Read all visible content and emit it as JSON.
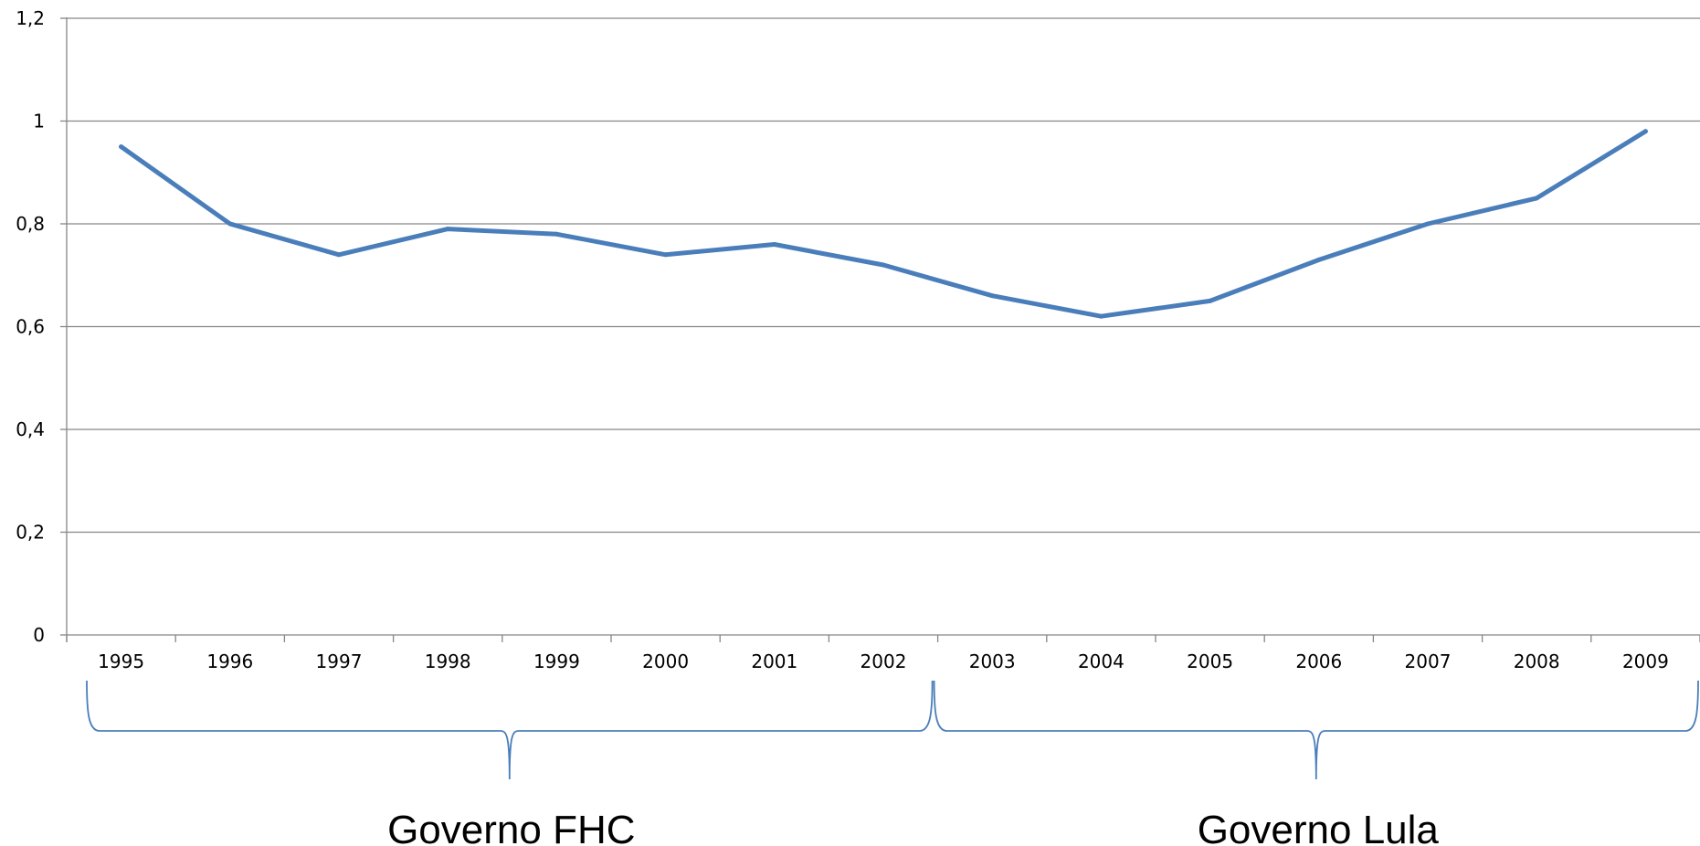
{
  "chart_data": {
    "type": "line",
    "title": "",
    "xlabel": "",
    "ylabel": "",
    "categories": [
      "1995",
      "1996",
      "1997",
      "1998",
      "1999",
      "2000",
      "2001",
      "2002",
      "2003",
      "2004",
      "2005",
      "2006",
      "2007",
      "2008",
      "2009"
    ],
    "series": [
      {
        "values": [
          0.95,
          0.8,
          0.74,
          0.79,
          0.78,
          0.74,
          0.76,
          0.72,
          0.66,
          0.62,
          0.65,
          0.73,
          0.8,
          0.85,
          0.98
        ]
      }
    ],
    "ylim": [
      0,
      1.2
    ],
    "yticks": [
      0,
      0.2,
      0.4,
      0.6,
      0.8,
      1,
      1.2
    ],
    "ytick_labels": [
      "0",
      "0,2",
      "0,4",
      "0,6",
      "0,8",
      "1",
      "1,2"
    ],
    "grid": true,
    "legend": "none",
    "line_color": "#4A7EBB",
    "grid_color": "#868686",
    "brace_color": "#4A7EBB",
    "annotations": [
      {
        "label": "Governo FHC",
        "from": "1995",
        "to": "2002"
      },
      {
        "label": "Governo Lula",
        "from": "2003",
        "to": "2009"
      }
    ]
  }
}
